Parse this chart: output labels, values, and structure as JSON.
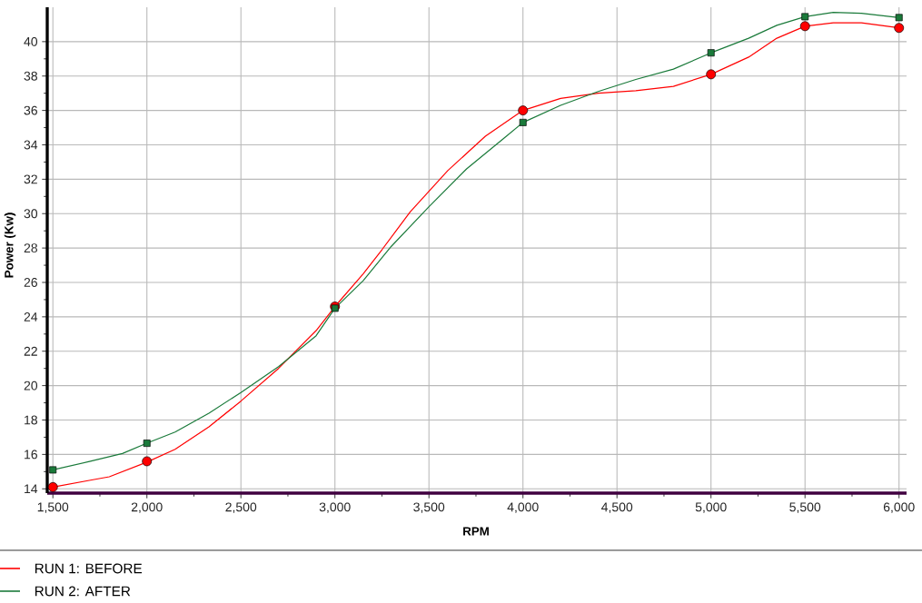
{
  "chart_data": {
    "type": "line",
    "xlabel": "RPM",
    "ylabel": "Power (Kw)",
    "xlim": [
      1470,
      6040
    ],
    "ylim": [
      13.75,
      42
    ],
    "xticks": [
      {
        "value": 1500,
        "label": "1,500"
      },
      {
        "value": 2000,
        "label": "2,000"
      },
      {
        "value": 2500,
        "label": "2,500"
      },
      {
        "value": 3000,
        "label": "3,000"
      },
      {
        "value": 3500,
        "label": "3,500"
      },
      {
        "value": 4000,
        "label": "4,000"
      },
      {
        "value": 4500,
        "label": "4,500"
      },
      {
        "value": 5000,
        "label": "5,000"
      },
      {
        "value": 5500,
        "label": "5,500"
      },
      {
        "value": 6000,
        "label": "6,000"
      }
    ],
    "yticks": [
      14,
      16,
      18,
      20,
      22,
      24,
      26,
      28,
      30,
      32,
      34,
      36,
      38,
      40
    ],
    "grid": true,
    "legend": "bottom",
    "line_style": "solid",
    "series": [
      {
        "name": "RUN 1: BEFORE",
        "color": "#ff0000",
        "marker": "none",
        "x": [
          1500,
          1700,
          1800,
          2000,
          2150,
          2330,
          2500,
          2700,
          2900,
          3000,
          3150,
          3250,
          3400,
          3600,
          3800,
          4000,
          4200,
          4400,
          4600,
          4800,
          5000,
          5200,
          5350,
          5500,
          5650,
          5800,
          6000
        ],
        "values": [
          14.1,
          14.5,
          14.7,
          15.55,
          16.3,
          17.6,
          19.1,
          21.0,
          23.2,
          24.6,
          26.5,
          27.9,
          30.1,
          32.5,
          34.5,
          36.0,
          36.7,
          37.0,
          37.15,
          37.4,
          38.1,
          39.1,
          40.2,
          40.9,
          41.1,
          41.1,
          40.8
        ]
      },
      {
        "name": "RUN 2: AFTER",
        "color": "#1a7a3a",
        "marker": "none",
        "x": [
          1500,
          1700,
          1870,
          2000,
          2150,
          2330,
          2500,
          2700,
          2900,
          3000,
          3150,
          3300,
          3500,
          3700,
          3900,
          4000,
          4200,
          4400,
          4600,
          4800,
          5000,
          5200,
          5350,
          5500,
          5650,
          5800,
          6000
        ],
        "values": [
          15.1,
          15.6,
          16.05,
          16.65,
          17.3,
          18.4,
          19.6,
          21.1,
          22.9,
          24.5,
          26.1,
          28.1,
          30.4,
          32.6,
          34.4,
          35.3,
          36.3,
          37.1,
          37.8,
          38.4,
          39.35,
          40.2,
          40.95,
          41.45,
          41.7,
          41.65,
          41.4
        ]
      },
      {
        "type": "scatter",
        "color": "#ff0000",
        "marker": "circle",
        "x": [
          1500,
          2000,
          3000,
          4000,
          5000,
          5500,
          6000
        ],
        "values": [
          14.1,
          15.6,
          24.6,
          36.0,
          38.1,
          40.9,
          40.8
        ]
      },
      {
        "type": "scatter",
        "color": "#1a7a3a",
        "marker": "square",
        "x": [
          1500,
          2000,
          3000,
          4000,
          5000,
          5500,
          6000
        ],
        "values": [
          15.1,
          16.65,
          24.5,
          35.3,
          39.35,
          41.45,
          41.4
        ]
      }
    ]
  }
}
